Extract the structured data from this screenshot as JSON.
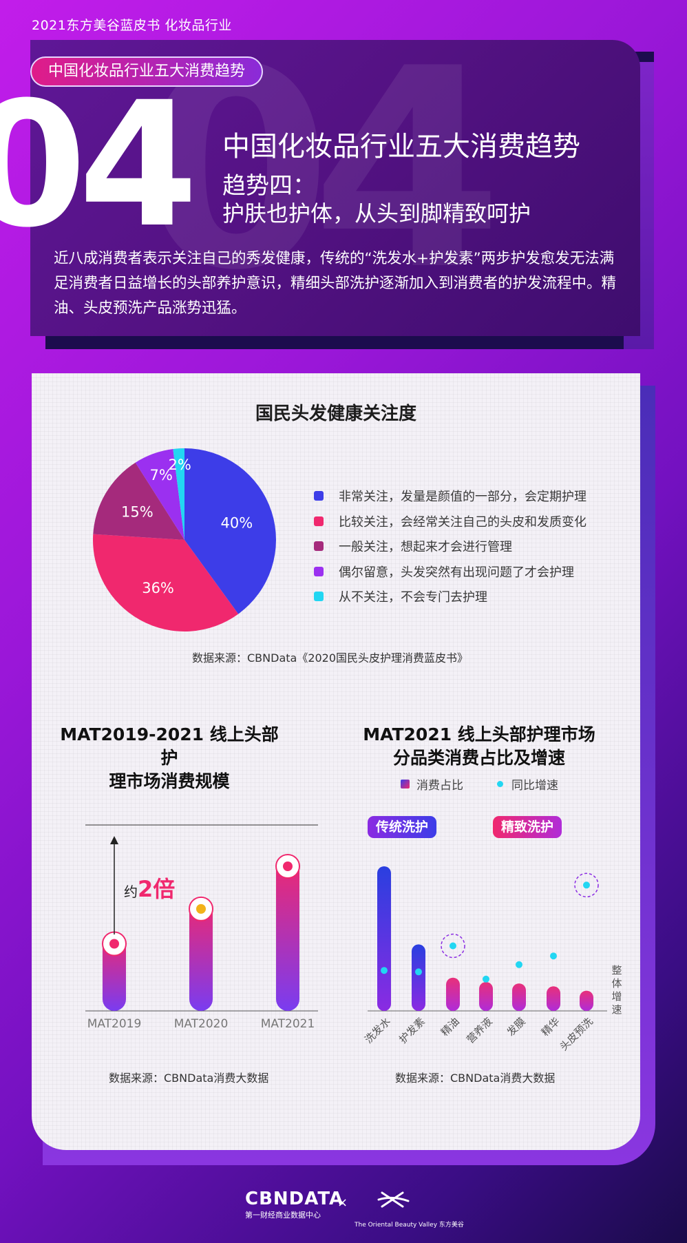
{
  "top_tag": "2021东方美谷蓝皮书 化妆品行业",
  "header": {
    "pill": "中国化妆品行业五大消费趋势",
    "number": "04",
    "title": "中国化妆品行业五大消费趋势",
    "subtitle1": "趋势四：",
    "subtitle2": "护肤也护体，从头到脚精致呵护",
    "body": "近八成消费者表示关注自己的秀发健康，传统的“洗发水+护发素”两步护发愈发无法满足消费者日益增长的头部养护意识，精细头部洗护逐渐加入到消费者的护发流程中。精油、头皮预洗产品涨势迅猛。"
  },
  "pie": {
    "title": "国民头发健康关注度",
    "source": "数据来源：CBNData《2020国民头皮护理消费蓝皮书》"
  },
  "bar1": {
    "title_line1": "MAT2019-2021 线上头部护",
    "title_line2": "理市场消费规模",
    "annotation_prefix": "约",
    "annotation_value": "2倍",
    "source": "数据来源：CBNData消费大数据"
  },
  "bar2": {
    "title_line1": "MAT2021 线上头部护理市场",
    "title_line2": "分品类消费占比及增速",
    "legend_share": "消费占比",
    "legend_growth": "同比增速",
    "badge_traditional": "传统洗护",
    "badge_refined": "精致洗护",
    "axis_right": "整体增速",
    "source": "数据来源：CBNData消费大数据"
  },
  "footer": {
    "logo": "CBNDATA",
    "logo_sub": "第一财经商业数据中心",
    "separator": "×",
    "partner": "The Oriental Beauty Valley 东方美谷"
  },
  "colors": {
    "blue": "#3d3de8",
    "pink": "#f0286e",
    "plum": "#a52a7c",
    "purple": "#9b30f0",
    "cyan": "#22d6f2"
  },
  "chart_data": [
    {
      "type": "pie",
      "title": "国民头发健康关注度",
      "slices": [
        {
          "label": "非常关注，发量是颜值的一部分，会定期护理",
          "value": 40,
          "color": "#3d3de8"
        },
        {
          "label": "比较关注，会经常关注自己的头皮和发质变化",
          "value": 36,
          "color": "#f0286e"
        },
        {
          "label": "一般关注，想起来才会进行管理",
          "value": 15,
          "color": "#a52a7c"
        },
        {
          "label": "偶尔留意，头发突然有出现问题了才会护理",
          "value": 7,
          "color": "#9b30f0"
        },
        {
          "label": "从不关注，不会专门去护理",
          "value": 2,
          "color": "#22d6f2"
        }
      ],
      "value_labels": [
        "40%",
        "36%",
        "15%",
        "7%",
        "2%"
      ]
    },
    {
      "type": "bar",
      "title": "MAT2019-2021 线上头部护理市场消费规模",
      "categories": [
        "MAT2019",
        "MAT2020",
        "MAT2021"
      ],
      "values": [
        1.0,
        1.45,
        2.0
      ],
      "annotation": "约2倍"
    },
    {
      "type": "bar",
      "title": "MAT2021 线上头部护理市场分品类消费占比及增速",
      "categories": [
        "洗发水",
        "护发素",
        "精油",
        "营养液",
        "发膜",
        "精华",
        "头皮预洗"
      ],
      "series": [
        {
          "name": "消费占比",
          "values": [
            100,
            46,
            23,
            20,
            19,
            17,
            14
          ]
        },
        {
          "name": "同比增速",
          "values": [
            28,
            27,
            45,
            22,
            32,
            38,
            87
          ]
        }
      ],
      "groups": [
        {
          "label": "传统洗护",
          "categories": [
            "洗发水",
            "护发素"
          ]
        },
        {
          "label": "精致洗护",
          "categories": [
            "精油",
            "营养液",
            "发膜",
            "精华",
            "头皮预洗"
          ]
        }
      ],
      "right_axis_label": "整体增速"
    }
  ]
}
